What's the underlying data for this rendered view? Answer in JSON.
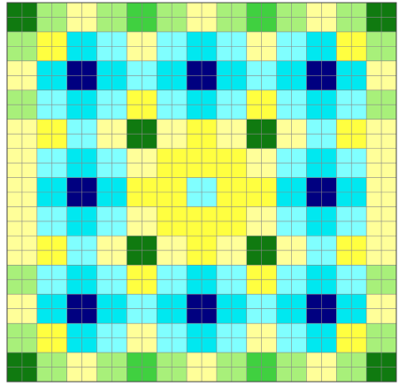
{
  "chart_data": {
    "type": "heatmap",
    "colors": [
      "#000080",
      "#0a0ad8",
      "#00e8f0",
      "#80ffff",
      "#ffff40",
      "#ffff99",
      "#a8f07a",
      "#40d040",
      "#107a10"
    ],
    "z": [
      [
        8,
        6,
        5,
        6,
        7,
        6,
        5,
        6,
        7,
        6,
        5,
        6,
        8
      ],
      [
        6,
        4,
        2,
        3,
        5,
        3,
        2,
        3,
        5,
        3,
        2,
        4,
        6
      ],
      [
        5,
        2,
        0,
        2,
        3,
        2,
        0,
        2,
        3,
        2,
        0,
        2,
        5
      ],
      [
        6,
        3,
        2,
        3,
        4,
        3,
        2,
        3,
        4,
        3,
        2,
        3,
        6
      ],
      [
        5,
        4,
        3,
        5,
        8,
        5,
        4,
        5,
        8,
        5,
        3,
        4,
        5
      ],
      [
        5,
        3,
        2,
        3,
        5,
        4,
        4,
        4,
        5,
        3,
        2,
        3,
        5
      ],
      [
        5,
        2,
        0,
        2,
        4,
        4,
        3,
        4,
        4,
        2,
        0,
        2,
        5
      ],
      [
        5,
        3,
        2,
        3,
        5,
        4,
        4,
        4,
        5,
        3,
        2,
        3,
        5
      ],
      [
        5,
        4,
        3,
        5,
        8,
        5,
        4,
        5,
        8,
        5,
        3,
        4,
        5
      ],
      [
        6,
        3,
        2,
        3,
        4,
        3,
        2,
        3,
        4,
        3,
        2,
        3,
        6
      ],
      [
        5,
        2,
        0,
        2,
        3,
        2,
        0,
        2,
        3,
        2,
        0,
        2,
        5
      ],
      [
        6,
        4,
        2,
        3,
        5,
        3,
        2,
        3,
        5,
        3,
        2,
        4,
        6
      ],
      [
        8,
        6,
        5,
        6,
        7,
        6,
        5,
        6,
        7,
        6,
        5,
        6,
        8
      ]
    ]
  }
}
